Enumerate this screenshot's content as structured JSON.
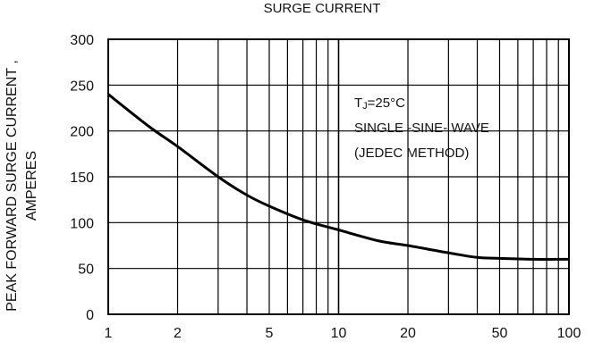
{
  "chart_data": {
    "type": "line",
    "title": "SURGE CURRENT",
    "ylabel_line1": "PEAK FORWARD SURGE CURRENT ,",
    "ylabel_line2": "AMPERES",
    "x_scale": "log",
    "xlim": [
      1,
      100
    ],
    "ylim": [
      0,
      300
    ],
    "x_tick_labels": [
      "1",
      "2",
      "5",
      "10",
      "20",
      "50",
      "100"
    ],
    "x_tick_values": [
      1,
      2,
      5,
      10,
      20,
      50,
      100
    ],
    "y_ticks": [
      0,
      50,
      100,
      150,
      200,
      250,
      300
    ],
    "grid": true,
    "annotation": {
      "tj_prefix": "T",
      "tj_sub": "J",
      "tj_rest": "=25°C",
      "line2": "SINGLE -SINE- WAVE",
      "line3": "(JEDEC METHOD)"
    },
    "series": [
      {
        "x": [
          1,
          1.5,
          2,
          3,
          4,
          5,
          7,
          10,
          15,
          20,
          30,
          40,
          50,
          70,
          100
        ],
        "y": [
          240,
          205,
          183,
          150,
          130,
          118,
          103,
          92,
          80,
          75,
          67,
          62,
          61,
          60,
          60
        ]
      }
    ]
  }
}
